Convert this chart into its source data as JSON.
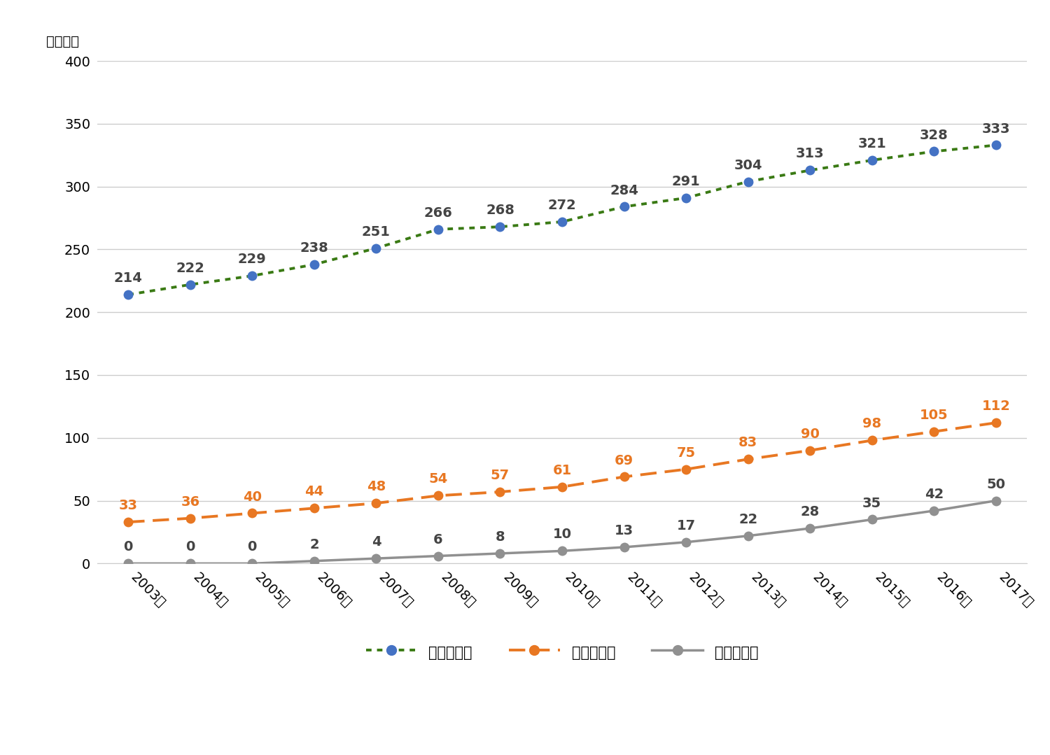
{
  "years": [
    "2003年",
    "2004年",
    "2005年",
    "2006年",
    "2007年",
    "2008年",
    "2009年",
    "2010年",
    "2011年",
    "2012年",
    "2013年",
    "2014年",
    "2015年",
    "2016年",
    "2017年"
  ],
  "shintai": [
    214,
    222,
    229,
    238,
    251,
    266,
    268,
    272,
    284,
    291,
    304,
    313,
    321,
    328,
    333
  ],
  "chiteki": [
    33,
    36,
    40,
    44,
    48,
    54,
    57,
    61,
    69,
    75,
    83,
    90,
    98,
    105,
    112
  ],
  "seishin": [
    0,
    0,
    0,
    2,
    4,
    6,
    8,
    10,
    13,
    17,
    22,
    28,
    35,
    42,
    50
  ],
  "shintai_marker_color": "#4472C4",
  "shintai_line_color": "#3A7A14",
  "chiteki_color": "#E87722",
  "seishin_color": "#909090",
  "ylim": [
    0,
    400
  ],
  "yticks": [
    0,
    50,
    100,
    150,
    200,
    250,
    300,
    350,
    400
  ],
  "ylabel": "（千人）",
  "legend_labels": [
    "身体障害者",
    "知的障害者",
    "精神障害者"
  ],
  "label_color_shintai": "#444444",
  "label_color_chiteki": "#E87722",
  "label_color_seishin": "#444444",
  "background_color": "#ffffff",
  "grid_color": "#cccccc",
  "xtick_rotation": -45,
  "label_fontsize": 14,
  "tick_fontsize": 14,
  "legend_fontsize": 15
}
